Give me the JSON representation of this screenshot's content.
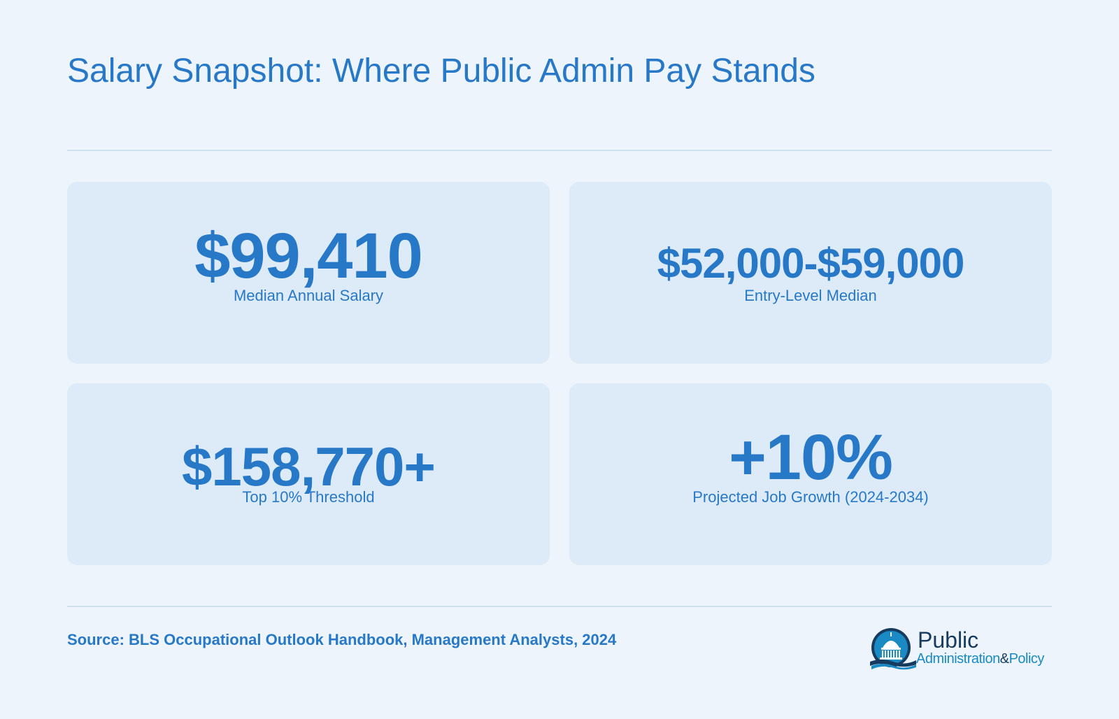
{
  "title": "Salary Snapshot: Where Public Admin Pay Stands",
  "stats": [
    {
      "value": "$99,410",
      "label": "Median Annual Salary"
    },
    {
      "value": "$52,000-$59,000",
      "label": "Entry-Level Median"
    },
    {
      "value": "$158,770+",
      "label": "Top 10% Threshold"
    },
    {
      "value": "+10%",
      "label": "Projected Job Growth (2024-2034)"
    }
  ],
  "source": "Source: BLS Occupational Outlook Handbook, Management Analysts, 2024",
  "logo": {
    "line1": "Public",
    "line2a": "Administration",
    "amp": "&",
    "line2b": "Policy"
  },
  "colors": {
    "accent": "#2878c8",
    "background": "#edf4fc",
    "card": "#ddebf8",
    "logo_dark": "#163b5e",
    "logo_teal": "#1a8ac4"
  }
}
